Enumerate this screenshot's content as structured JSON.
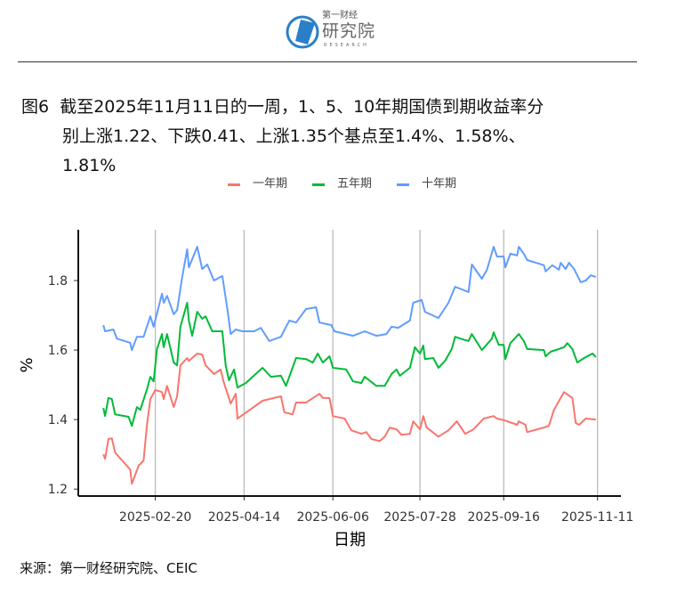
{
  "header": {
    "logo_text_top": "第一财经",
    "logo_text_main": "研究院",
    "logo_text_sub": "RESEARCH"
  },
  "title": {
    "label": "图6",
    "line1": "截至2025年11月11日的一周，1、5、10年期国债到期收益率分",
    "line2": "别上涨1.22、下跌0.41、上涨1.35个基点至1.4%、1.58%、",
    "line3": "1.81%"
  },
  "caption": "来源：第一财经研究院、CEIC",
  "chart_data": {
    "type": "line",
    "title": "",
    "xlabel": "日期",
    "ylabel": "%",
    "x_unit": "day of year 2025",
    "xlim": [
      5,
      329
    ],
    "ylim": [
      1.18,
      1.946
    ],
    "yticks": [
      1.2,
      1.4,
      1.6,
      1.8
    ],
    "ytick_labels": [
      "1.2",
      "1.4",
      "1.6",
      "1.8"
    ],
    "xticks": [
      51,
      104,
      157,
      209,
      259,
      315
    ],
    "xtick_labels": [
      "2025-02-20",
      "2025-04-14",
      "2025-06-06",
      "2025-07-28",
      "2025-09-16",
      "2025-11-11"
    ],
    "grid": "vertical major lines at x ticks",
    "legend_position": "top",
    "series": [
      {
        "name": "一年期",
        "color": "#F8766D",
        "points": [
          [
            20,
            1.3
          ],
          [
            21,
            1.287
          ],
          [
            23,
            1.344
          ],
          [
            25,
            1.346
          ],
          [
            27,
            1.305
          ],
          [
            36,
            1.256
          ],
          [
            37,
            1.215
          ],
          [
            41,
            1.267
          ],
          [
            44,
            1.282
          ],
          [
            46,
            1.385
          ],
          [
            48,
            1.459
          ],
          [
            51,
            1.485
          ],
          [
            55,
            1.479
          ],
          [
            56,
            1.459
          ],
          [
            58,
            1.497
          ],
          [
            62,
            1.436
          ],
          [
            64,
            1.467
          ],
          [
            66,
            1.556
          ],
          [
            70,
            1.577
          ],
          [
            71,
            1.569
          ],
          [
            76,
            1.59
          ],
          [
            79,
            1.587
          ],
          [
            81,
            1.556
          ],
          [
            86,
            1.531
          ],
          [
            90,
            1.544
          ],
          [
            92,
            1.505
          ],
          [
            96,
            1.446
          ],
          [
            99,
            1.474
          ],
          [
            100,
            1.403
          ],
          [
            106,
            1.423
          ],
          [
            115,
            1.454
          ],
          [
            126,
            1.467
          ],
          [
            128,
            1.421
          ],
          [
            133,
            1.415
          ],
          [
            135,
            1.449
          ],
          [
            141,
            1.449
          ],
          [
            149,
            1.474
          ],
          [
            151,
            1.462
          ],
          [
            155,
            1.462
          ],
          [
            157,
            1.41
          ],
          [
            164,
            1.403
          ],
          [
            168,
            1.369
          ],
          [
            174,
            1.359
          ],
          [
            177,
            1.364
          ],
          [
            180,
            1.344
          ],
          [
            185,
            1.338
          ],
          [
            188,
            1.351
          ],
          [
            191,
            1.377
          ],
          [
            195,
            1.372
          ],
          [
            198,
            1.356
          ],
          [
            203,
            1.359
          ],
          [
            205,
            1.395
          ],
          [
            209,
            1.372
          ],
          [
            211,
            1.41
          ],
          [
            213,
            1.377
          ],
          [
            220,
            1.351
          ],
          [
            226,
            1.369
          ],
          [
            231,
            1.395
          ],
          [
            236,
            1.359
          ],
          [
            241,
            1.372
          ],
          [
            247,
            1.403
          ],
          [
            253,
            1.41
          ],
          [
            255,
            1.403
          ],
          [
            260,
            1.397
          ],
          [
            267,
            1.385
          ],
          [
            268,
            1.395
          ],
          [
            272,
            1.385
          ],
          [
            273,
            1.364
          ],
          [
            283,
            1.377
          ],
          [
            286,
            1.382
          ],
          [
            289,
            1.428
          ],
          [
            295,
            1.479
          ],
          [
            300,
            1.462
          ],
          [
            302,
            1.39
          ],
          [
            304,
            1.385
          ],
          [
            308,
            1.403
          ],
          [
            314,
            1.4
          ]
        ]
      },
      {
        "name": "五年期",
        "color": "#00BA38",
        "points": [
          [
            20,
            1.433
          ],
          [
            21,
            1.41
          ],
          [
            23,
            1.462
          ],
          [
            25,
            1.459
          ],
          [
            27,
            1.415
          ],
          [
            35,
            1.408
          ],
          [
            37,
            1.382
          ],
          [
            40,
            1.436
          ],
          [
            42,
            1.428
          ],
          [
            46,
            1.487
          ],
          [
            48,
            1.523
          ],
          [
            50,
            1.51
          ],
          [
            52,
            1.603
          ],
          [
            55,
            1.646
          ],
          [
            56,
            1.608
          ],
          [
            58,
            1.646
          ],
          [
            62,
            1.564
          ],
          [
            64,
            1.556
          ],
          [
            66,
            1.667
          ],
          [
            70,
            1.736
          ],
          [
            71,
            1.685
          ],
          [
            73,
            1.641
          ],
          [
            76,
            1.71
          ],
          [
            79,
            1.69
          ],
          [
            81,
            1.697
          ],
          [
            85,
            1.654
          ],
          [
            91,
            1.654
          ],
          [
            93,
            1.556
          ],
          [
            95,
            1.513
          ],
          [
            98,
            1.544
          ],
          [
            100,
            1.492
          ],
          [
            105,
            1.505
          ],
          [
            115,
            1.549
          ],
          [
            120,
            1.523
          ],
          [
            126,
            1.526
          ],
          [
            129,
            1.497
          ],
          [
            135,
            1.577
          ],
          [
            141,
            1.574
          ],
          [
            145,
            1.564
          ],
          [
            148,
            1.59
          ],
          [
            151,
            1.564
          ],
          [
            155,
            1.582
          ],
          [
            157,
            1.549
          ],
          [
            165,
            1.544
          ],
          [
            169,
            1.51
          ],
          [
            174,
            1.505
          ],
          [
            176,
            1.523
          ],
          [
            183,
            1.497
          ],
          [
            188,
            1.497
          ],
          [
            192,
            1.531
          ],
          [
            195,
            1.544
          ],
          [
            197,
            1.526
          ],
          [
            203,
            1.549
          ],
          [
            206,
            1.608
          ],
          [
            209,
            1.59
          ],
          [
            211,
            1.613
          ],
          [
            212,
            1.574
          ],
          [
            217,
            1.577
          ],
          [
            220,
            1.549
          ],
          [
            224,
            1.569
          ],
          [
            228,
            1.603
          ],
          [
            230,
            1.638
          ],
          [
            233,
            1.633
          ],
          [
            238,
            1.626
          ],
          [
            240,
            1.646
          ],
          [
            246,
            1.6
          ],
          [
            252,
            1.633
          ],
          [
            253,
            1.651
          ],
          [
            256,
            1.615
          ],
          [
            259,
            1.615
          ],
          [
            260,
            1.574
          ],
          [
            263,
            1.62
          ],
          [
            268,
            1.646
          ],
          [
            271,
            1.626
          ],
          [
            273,
            1.603
          ],
          [
            283,
            1.6
          ],
          [
            284,
            1.582
          ],
          [
            287,
            1.595
          ],
          [
            295,
            1.608
          ],
          [
            297,
            1.62
          ],
          [
            300,
            1.603
          ],
          [
            303,
            1.564
          ],
          [
            307,
            1.577
          ],
          [
            312,
            1.59
          ],
          [
            314,
            1.58
          ]
        ]
      },
      {
        "name": "十年期",
        "color": "#619CFF",
        "points": [
          [
            20,
            1.672
          ],
          [
            21,
            1.654
          ],
          [
            26,
            1.659
          ],
          [
            28,
            1.633
          ],
          [
            36,
            1.621
          ],
          [
            37,
            1.6
          ],
          [
            40,
            1.638
          ],
          [
            44,
            1.638
          ],
          [
            48,
            1.697
          ],
          [
            50,
            1.667
          ],
          [
            55,
            1.762
          ],
          [
            56,
            1.736
          ],
          [
            58,
            1.756
          ],
          [
            62,
            1.703
          ],
          [
            64,
            1.715
          ],
          [
            67,
            1.808
          ],
          [
            70,
            1.89
          ],
          [
            71,
            1.838
          ],
          [
            76,
            1.897
          ],
          [
            79,
            1.833
          ],
          [
            82,
            1.846
          ],
          [
            86,
            1.8
          ],
          [
            91,
            1.813
          ],
          [
            94,
            1.718
          ],
          [
            96,
            1.646
          ],
          [
            99,
            1.659
          ],
          [
            103,
            1.654
          ],
          [
            110,
            1.654
          ],
          [
            114,
            1.664
          ],
          [
            119,
            1.626
          ],
          [
            126,
            1.638
          ],
          [
            131,
            1.685
          ],
          [
            135,
            1.679
          ],
          [
            141,
            1.718
          ],
          [
            147,
            1.723
          ],
          [
            149,
            1.679
          ],
          [
            156,
            1.672
          ],
          [
            158,
            1.654
          ],
          [
            169,
            1.641
          ],
          [
            176,
            1.654
          ],
          [
            183,
            1.641
          ],
          [
            189,
            1.646
          ],
          [
            192,
            1.667
          ],
          [
            196,
            1.664
          ],
          [
            203,
            1.685
          ],
          [
            205,
            1.736
          ],
          [
            210,
            1.744
          ],
          [
            212,
            1.71
          ],
          [
            220,
            1.692
          ],
          [
            226,
            1.736
          ],
          [
            230,
            1.782
          ],
          [
            238,
            1.767
          ],
          [
            240,
            1.846
          ],
          [
            246,
            1.805
          ],
          [
            249,
            1.831
          ],
          [
            253,
            1.897
          ],
          [
            255,
            1.869
          ],
          [
            259,
            1.869
          ],
          [
            260,
            1.838
          ],
          [
            263,
            1.877
          ],
          [
            267,
            1.872
          ],
          [
            268,
            1.897
          ],
          [
            271,
            1.877
          ],
          [
            273,
            1.859
          ],
          [
            283,
            1.844
          ],
          [
            284,
            1.826
          ],
          [
            288,
            1.844
          ],
          [
            292,
            1.831
          ],
          [
            293,
            1.851
          ],
          [
            296,
            1.833
          ],
          [
            298,
            1.851
          ],
          [
            301,
            1.833
          ],
          [
            305,
            1.795
          ],
          [
            308,
            1.8
          ],
          [
            311,
            1.815
          ],
          [
            314,
            1.81
          ]
        ]
      }
    ]
  }
}
